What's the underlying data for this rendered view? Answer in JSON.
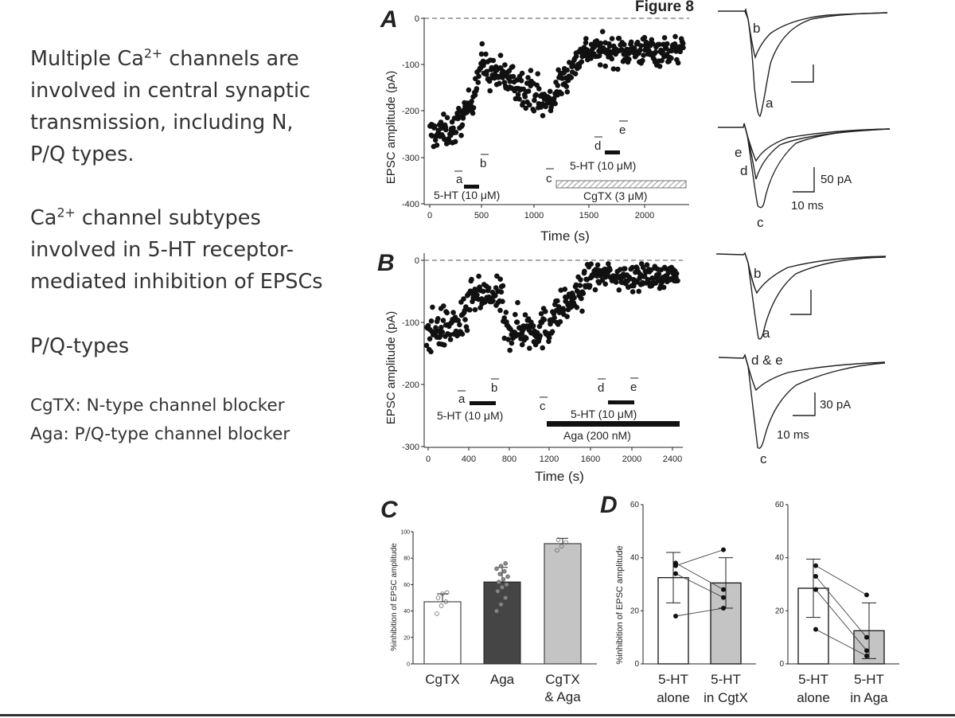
{
  "slide": {
    "para1_pre": "Multiple Ca",
    "para1_sup": "2+",
    "para1_post": " channels are",
    "para1_l2": "involved in central synaptic",
    "para1_l3": "transmission, including N,",
    "para1_l4": "P/Q types.",
    "para2_pre": "Ca",
    "para2_sup": "2+",
    "para2_post": " channel subtypes",
    "para2_l2": "involved in 5-HT receptor-",
    "para2_l3": "mediated inhibition of EPSCs",
    "para3": "P/Q-types",
    "note1": "CgTX: N-type channel blocker",
    "note2": "Aga: P/Q-type channel blocker"
  },
  "figure": {
    "title": "Figure 8",
    "panelA": {
      "letter": "A",
      "ylabel": "EPSC amplitude (pA)",
      "xlabel": "Time (s)",
      "yticks": [
        "0",
        "-100",
        "-200",
        "-300",
        "-400"
      ],
      "xticks": [
        "0",
        "500",
        "1000",
        "1500",
        "2000"
      ],
      "markers": [
        "a",
        "b",
        "c",
        "d",
        "e"
      ],
      "bar1_label": "5-HT (10 μM)",
      "bar2_label": "5-HT (10 μM)",
      "bar3_label": "CgTX (3 μM)"
    },
    "panelB": {
      "letter": "B",
      "ylabel": "EPSC amplitude (pA)",
      "xlabel": "Time (s)",
      "yticks": [
        "0",
        "-100",
        "-200",
        "-300"
      ],
      "xticks": [
        "0",
        "400",
        "800",
        "1200",
        "1600",
        "2000",
        "2400"
      ],
      "markers": [
        "a",
        "b",
        "c",
        "d",
        "e"
      ],
      "bar1_label": "5-HT (10 μM)",
      "bar2_label": "5-HT (10 μM)",
      "bar3_label": "Aga (200 nM)"
    },
    "tracesA": {
      "top_labels": [
        "b",
        "a"
      ],
      "bottom_labels": [
        "e",
        "d",
        "c"
      ],
      "scale_amp": "50 pA",
      "scale_time": "10 ms"
    },
    "tracesB": {
      "top_labels": [
        "b",
        "a"
      ],
      "bottom_labels": [
        "d & e",
        "c"
      ],
      "scale_amp": "30 pA",
      "scale_time": "10 ms"
    },
    "panelC": {
      "letter": "C"
    },
    "panelD": {
      "letter": "D"
    }
  },
  "chart_data": [
    {
      "type": "scatter",
      "title": "Panel A",
      "xlabel": "Time (s)",
      "ylabel": "EPSC amplitude (pA)",
      "xlim": [
        -50,
        2400
      ],
      "ylim": [
        -400,
        0
      ],
      "segments": [
        {
          "x": [
            0,
            250
          ],
          "mean": [
            -250,
            -240
          ],
          "sd": 30
        },
        {
          "x": [
            250,
            400
          ],
          "mean": [
            -230,
            -180
          ],
          "sd": 30
        },
        {
          "x": [
            400,
            500
          ],
          "mean": [
            -160,
            -80
          ],
          "sd": 30
        },
        {
          "x": [
            500,
            1000
          ],
          "mean": [
            -110,
            -160
          ],
          "sd": 35
        },
        {
          "x": [
            1000,
            1150
          ],
          "mean": [
            -180,
            -180
          ],
          "sd": 35
        },
        {
          "x": [
            1150,
            1400
          ],
          "mean": [
            -160,
            -80
          ],
          "sd": 30
        },
        {
          "x": [
            1400,
            2350
          ],
          "mean": [
            -70,
            -70
          ],
          "sd": 28
        }
      ]
    },
    {
      "type": "scatter",
      "title": "Panel B",
      "xlabel": "Time (s)",
      "ylabel": "EPSC amplitude (pA)",
      "xlim": [
        -20,
        2500
      ],
      "ylim": [
        -300,
        0
      ],
      "segments": [
        {
          "x": [
            0,
            400
          ],
          "mean": [
            -115,
            -100
          ],
          "sd": 30
        },
        {
          "x": [
            400,
            750
          ],
          "mean": [
            -60,
            -60
          ],
          "sd": 25
        },
        {
          "x": [
            750,
            1200
          ],
          "mean": [
            -110,
            -110
          ],
          "sd": 30
        },
        {
          "x": [
            1200,
            1550
          ],
          "mean": [
            -95,
            -45
          ],
          "sd": 25
        },
        {
          "x": [
            1550,
            2450
          ],
          "mean": [
            -25,
            -25
          ],
          "sd": 18
        }
      ]
    },
    {
      "type": "bar",
      "title": "Panel C",
      "ylabel": "%inhibition of EPSC amplitude",
      "categories": [
        "CgTX",
        "Aga",
        "CgTX\n& Aga"
      ],
      "values": [
        47,
        62,
        91
      ],
      "errors": [
        6,
        11,
        4
      ],
      "colors": [
        "#ffffff",
        "#454545",
        "#c4c4c4"
      ],
      "points": [
        [
          38,
          44,
          47,
          50,
          53,
          54
        ],
        [
          40,
          45,
          50,
          55,
          58,
          60,
          62,
          64,
          66,
          68,
          70,
          72,
          74,
          76
        ],
        [
          86,
          89,
          92,
          94
        ]
      ],
      "ylim": [
        0,
        100
      ],
      "yticks": [
        "0",
        "20",
        "40",
        "60",
        "80",
        "100"
      ]
    },
    {
      "type": "bar",
      "title": "Panel D (left)",
      "ylabel": "%inhibition of EPSC amplitude",
      "categories": [
        "5-HT\nalone",
        "5-HT\nin CgtX"
      ],
      "values": [
        32.5,
        30.5
      ],
      "errors": [
        9.5,
        9.5
      ],
      "colors": [
        "#ffffff",
        "#c4c4c4"
      ],
      "paired": [
        [
          37,
          43
        ],
        [
          38,
          28
        ],
        [
          34,
          25
        ],
        [
          18,
          21
        ]
      ],
      "ylim": [
        0,
        60
      ],
      "yticks": [
        "0",
        "20",
        "40",
        "60"
      ]
    },
    {
      "type": "bar",
      "title": "Panel D (right)",
      "categories": [
        "5-HT\nalone",
        "5-HT\nin Aga"
      ],
      "values": [
        28.5,
        12.5
      ],
      "errors": [
        11,
        10.5
      ],
      "colors": [
        "#ffffff",
        "#c4c4c4"
      ],
      "paired": [
        [
          37,
          26
        ],
        [
          33,
          10
        ],
        [
          28,
          5
        ],
        [
          13,
          3
        ]
      ],
      "ylim": [
        0,
        60
      ],
      "yticks": [
        "0",
        "20",
        "40",
        "60"
      ]
    }
  ]
}
